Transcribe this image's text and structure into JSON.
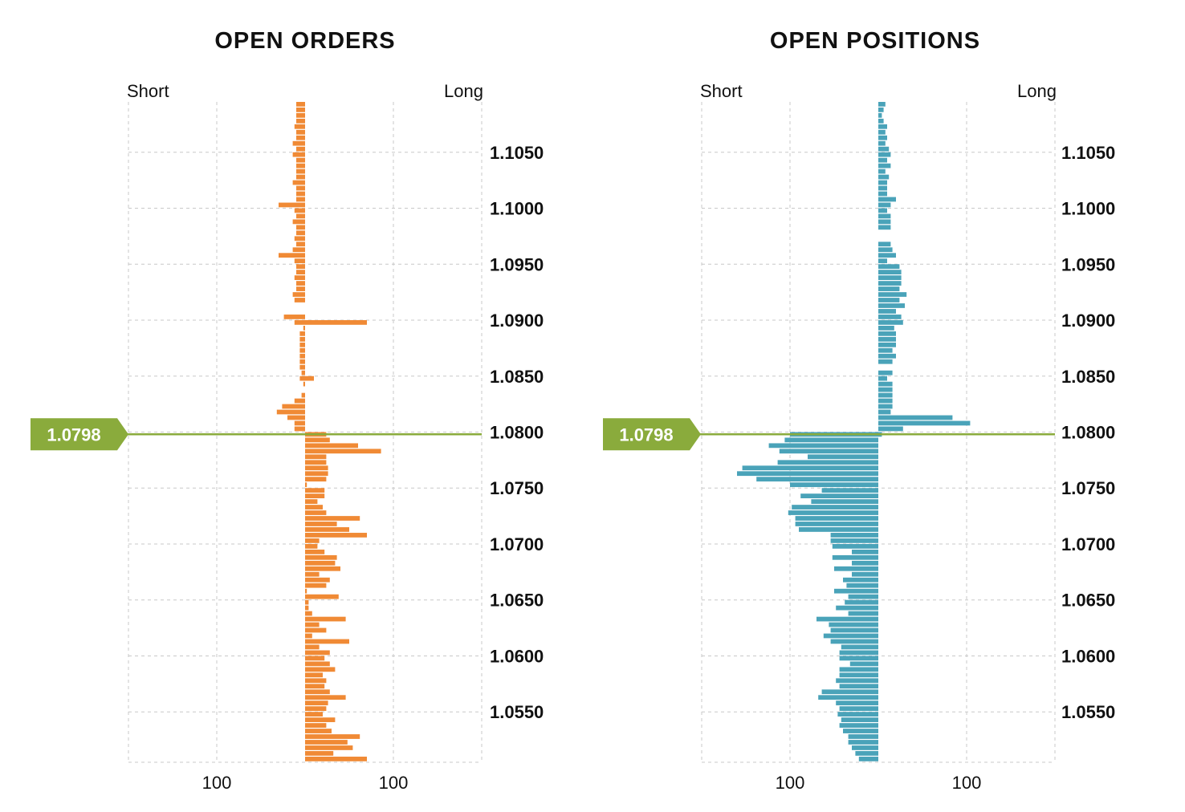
{
  "colors": {
    "orders": "#f08a35",
    "positions": "#4aa3b9",
    "price": "#8aab3c",
    "grid": "#c8c8c8",
    "text": "#111111"
  },
  "chart_data": [
    {
      "type": "bar",
      "orientation": "horizontal",
      "title": "OPEN ORDERS",
      "short_label": "Short",
      "long_label": "Long",
      "current_price": "1.0798",
      "current_price_value": 1.0798,
      "ylim": [
        1.0505,
        1.1095
      ],
      "xlim": [
        -100,
        100
      ],
      "y_ticks": [
        "1.1050",
        "1.1000",
        "1.0950",
        "1.0900",
        "1.0850",
        "1.0800",
        "1.0750",
        "1.0700",
        "1.0650",
        "1.0600",
        "1.0550"
      ],
      "y_tick_values": [
        1.105,
        1.1,
        1.095,
        1.09,
        1.085,
        1.08,
        1.075,
        1.07,
        1.065,
        1.06,
        1.055
      ],
      "x_ticks": [
        "100",
        "100"
      ],
      "x_tick_values": [
        -50,
        50
      ],
      "grid": true,
      "bin_size": 0.0005,
      "series": [
        {
          "side": "short",
          "bins": [
            [
              1.10925,
              5
            ],
            [
              1.10875,
              5
            ],
            [
              1.10825,
              5
            ],
            [
              1.10775,
              5
            ],
            [
              1.10725,
              6
            ],
            [
              1.10675,
              5
            ],
            [
              1.10625,
              5
            ],
            [
              1.10575,
              7
            ],
            [
              1.10525,
              5
            ],
            [
              1.10475,
              7
            ],
            [
              1.10425,
              5
            ],
            [
              1.10375,
              5
            ],
            [
              1.10325,
              5
            ],
            [
              1.10275,
              5
            ],
            [
              1.10225,
              7
            ],
            [
              1.10175,
              5
            ],
            [
              1.10125,
              5
            ],
            [
              1.10075,
              5
            ],
            [
              1.10025,
              15
            ],
            [
              1.09975,
              6
            ],
            [
              1.09925,
              5
            ],
            [
              1.09875,
              7
            ],
            [
              1.09825,
              5
            ],
            [
              1.09775,
              5
            ],
            [
              1.09725,
              6
            ],
            [
              1.09675,
              5
            ],
            [
              1.09625,
              7
            ],
            [
              1.09575,
              15
            ],
            [
              1.09525,
              6
            ],
            [
              1.09475,
              5
            ],
            [
              1.09425,
              5
            ],
            [
              1.09375,
              6
            ],
            [
              1.09325,
              5
            ],
            [
              1.09275,
              5
            ],
            [
              1.09225,
              7
            ],
            [
              1.09175,
              6
            ],
            [
              1.09025,
              12
            ],
            [
              1.08975,
              6
            ],
            [
              1.08925,
              1
            ],
            [
              1.08875,
              3
            ],
            [
              1.08825,
              3
            ],
            [
              1.08775,
              3
            ],
            [
              1.08725,
              3
            ],
            [
              1.08675,
              3
            ],
            [
              1.08625,
              3
            ],
            [
              1.08575,
              3
            ],
            [
              1.08525,
              2
            ],
            [
              1.08475,
              3
            ],
            [
              1.08425,
              1
            ],
            [
              1.08325,
              2
            ],
            [
              1.08275,
              6
            ],
            [
              1.08225,
              13
            ],
            [
              1.08175,
              16
            ],
            [
              1.08125,
              10
            ],
            [
              1.08075,
              6
            ],
            [
              1.08025,
              6
            ]
          ]
        },
        {
          "side": "long",
          "bins": [
            [
              1.08975,
              35
            ],
            [
              1.08475,
              5
            ],
            [
              1.07975,
              12
            ],
            [
              1.07925,
              14
            ],
            [
              1.07875,
              30
            ],
            [
              1.07825,
              43
            ],
            [
              1.07775,
              12
            ],
            [
              1.07725,
              12
            ],
            [
              1.07675,
              13
            ],
            [
              1.07625,
              13
            ],
            [
              1.07575,
              12
            ],
            [
              1.07525,
              1
            ],
            [
              1.07475,
              11
            ],
            [
              1.07425,
              11
            ],
            [
              1.07375,
              7
            ],
            [
              1.07325,
              10
            ],
            [
              1.07275,
              12
            ],
            [
              1.07225,
              31
            ],
            [
              1.07175,
              18
            ],
            [
              1.07125,
              25
            ],
            [
              1.07075,
              35
            ],
            [
              1.07025,
              8
            ],
            [
              1.06975,
              7
            ],
            [
              1.06925,
              11
            ],
            [
              1.06875,
              18
            ],
            [
              1.06825,
              17
            ],
            [
              1.06775,
              20
            ],
            [
              1.06725,
              8
            ],
            [
              1.06675,
              14
            ],
            [
              1.06625,
              12
            ],
            [
              1.06575,
              1
            ],
            [
              1.06525,
              19
            ],
            [
              1.06475,
              2
            ],
            [
              1.06425,
              2
            ],
            [
              1.06375,
              4
            ],
            [
              1.06325,
              23
            ],
            [
              1.06275,
              8
            ],
            [
              1.06225,
              12
            ],
            [
              1.06175,
              4
            ],
            [
              1.06125,
              25
            ],
            [
              1.06075,
              8
            ],
            [
              1.06025,
              14
            ],
            [
              1.05975,
              11
            ],
            [
              1.05925,
              14
            ],
            [
              1.05875,
              17
            ],
            [
              1.05825,
              10
            ],
            [
              1.05775,
              12
            ],
            [
              1.05725,
              11
            ],
            [
              1.05675,
              14
            ],
            [
              1.05625,
              23
            ],
            [
              1.05575,
              13
            ],
            [
              1.05525,
              12
            ],
            [
              1.05475,
              10
            ],
            [
              1.05425,
              17
            ],
            [
              1.05375,
              12
            ],
            [
              1.05325,
              15
            ],
            [
              1.05275,
              31
            ],
            [
              1.05225,
              24
            ],
            [
              1.05175,
              27
            ],
            [
              1.05125,
              16
            ],
            [
              1.05075,
              35
            ]
          ]
        }
      ]
    },
    {
      "type": "bar",
      "orientation": "horizontal",
      "title": "OPEN POSITIONS",
      "short_label": "Short",
      "long_label": "Long",
      "current_price": "1.0798",
      "current_price_value": 1.0798,
      "ylim": [
        1.0505,
        1.1095
      ],
      "xlim": [
        -100,
        100
      ],
      "y_ticks": [
        "1.1050",
        "1.1000",
        "1.0950",
        "1.0900",
        "1.0850",
        "1.0800",
        "1.0750",
        "1.0700",
        "1.0650",
        "1.0600",
        "1.0550"
      ],
      "y_tick_values": [
        1.105,
        1.1,
        1.095,
        1.09,
        1.085,
        1.08,
        1.075,
        1.07,
        1.065,
        1.06,
        1.055
      ],
      "x_ticks": [
        "100",
        "100"
      ],
      "x_tick_values": [
        -50,
        50
      ],
      "grid": true,
      "bin_size": 0.0005,
      "series": [
        {
          "side": "long",
          "bins": [
            [
              1.10925,
              4
            ],
            [
              1.10875,
              3
            ],
            [
              1.10825,
              2
            ],
            [
              1.10775,
              3
            ],
            [
              1.10725,
              5
            ],
            [
              1.10675,
              4
            ],
            [
              1.10625,
              5
            ],
            [
              1.10575,
              4
            ],
            [
              1.10525,
              6
            ],
            [
              1.10475,
              7
            ],
            [
              1.10425,
              5
            ],
            [
              1.10375,
              7
            ],
            [
              1.10325,
              4
            ],
            [
              1.10275,
              6
            ],
            [
              1.10225,
              5
            ],
            [
              1.10175,
              5
            ],
            [
              1.10125,
              5
            ],
            [
              1.10075,
              10
            ],
            [
              1.10025,
              7
            ],
            [
              1.09975,
              5
            ],
            [
              1.09925,
              7
            ],
            [
              1.09875,
              7
            ],
            [
              1.09825,
              7
            ],
            [
              1.09675,
              7
            ],
            [
              1.09625,
              8
            ],
            [
              1.09575,
              10
            ],
            [
              1.09525,
              5
            ],
            [
              1.09475,
              12
            ],
            [
              1.09425,
              13
            ],
            [
              1.09375,
              13
            ],
            [
              1.09325,
              13
            ],
            [
              1.09275,
              12
            ],
            [
              1.09225,
              16
            ],
            [
              1.09175,
              12
            ],
            [
              1.09125,
              15
            ],
            [
              1.09075,
              10
            ],
            [
              1.09025,
              13
            ],
            [
              1.08975,
              14
            ],
            [
              1.08925,
              9
            ],
            [
              1.08875,
              10
            ],
            [
              1.08825,
              10
            ],
            [
              1.08775,
              10
            ],
            [
              1.08725,
              8
            ],
            [
              1.08675,
              10
            ],
            [
              1.08625,
              8
            ],
            [
              1.08525,
              8
            ],
            [
              1.08475,
              5
            ],
            [
              1.08425,
              8
            ],
            [
              1.08375,
              8
            ],
            [
              1.08325,
              8
            ],
            [
              1.08275,
              8
            ],
            [
              1.08225,
              8
            ],
            [
              1.08175,
              7
            ],
            [
              1.08125,
              42
            ],
            [
              1.08075,
              52
            ],
            [
              1.08025,
              14
            ],
            [
              1.07975,
              2
            ]
          ]
        },
        {
          "side": "short",
          "bins": [
            [
              1.07975,
              50
            ],
            [
              1.07925,
              53
            ],
            [
              1.07875,
              62
            ],
            [
              1.07825,
              56
            ],
            [
              1.07775,
              40
            ],
            [
              1.07725,
              57
            ],
            [
              1.07675,
              77
            ],
            [
              1.07625,
              80
            ],
            [
              1.07575,
              69
            ],
            [
              1.07525,
              50
            ],
            [
              1.07475,
              32
            ],
            [
              1.07425,
              44
            ],
            [
              1.07375,
              38
            ],
            [
              1.07325,
              49
            ],
            [
              1.07275,
              51
            ],
            [
              1.07225,
              47
            ],
            [
              1.07175,
              47
            ],
            [
              1.07125,
              45
            ],
            [
              1.07075,
              27
            ],
            [
              1.07025,
              27
            ],
            [
              1.06975,
              26
            ],
            [
              1.06925,
              15
            ],
            [
              1.06875,
              26
            ],
            [
              1.06825,
              15
            ],
            [
              1.06775,
              25
            ],
            [
              1.06725,
              15
            ],
            [
              1.06675,
              20
            ],
            [
              1.06625,
              18
            ],
            [
              1.06575,
              25
            ],
            [
              1.06525,
              17
            ],
            [
              1.06475,
              19
            ],
            [
              1.06425,
              24
            ],
            [
              1.06375,
              17
            ],
            [
              1.06325,
              35
            ],
            [
              1.06275,
              28
            ],
            [
              1.06225,
              27
            ],
            [
              1.06175,
              31
            ],
            [
              1.06125,
              27
            ],
            [
              1.06075,
              21
            ],
            [
              1.06025,
              22
            ],
            [
              1.05975,
              22
            ],
            [
              1.05925,
              16
            ],
            [
              1.05875,
              22
            ],
            [
              1.05825,
              22
            ],
            [
              1.05775,
              24
            ],
            [
              1.05725,
              22
            ],
            [
              1.05675,
              32
            ],
            [
              1.05625,
              34
            ],
            [
              1.05575,
              24
            ],
            [
              1.05525,
              22
            ],
            [
              1.05475,
              23
            ],
            [
              1.05425,
              21
            ],
            [
              1.05375,
              22
            ],
            [
              1.05325,
              20
            ],
            [
              1.05275,
              17
            ],
            [
              1.05225,
              17
            ],
            [
              1.05175,
              15
            ],
            [
              1.05125,
              13
            ],
            [
              1.05075,
              11
            ]
          ]
        }
      ]
    }
  ]
}
